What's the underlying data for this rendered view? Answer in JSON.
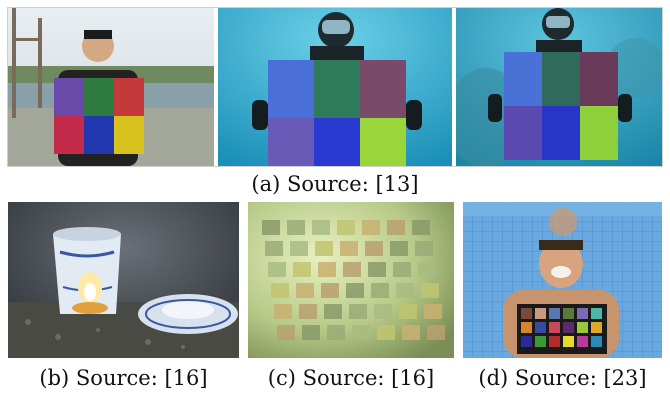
{
  "figure": {
    "row_a": {
      "caption": "(a) Source: [13]",
      "images": [
        {
          "description_icon": "person-holding-color-chart-on-shore-photo"
        },
        {
          "description_icon": "diver-holding-color-chart-underwater-photo"
        },
        {
          "description_icon": "diver-holding-color-chart-deeper-underwater-photo"
        }
      ]
    },
    "row_b": [
      {
        "caption": "(b) Source: [16]",
        "description_icon": "underwater-cup-and-saucer-photo"
      },
      {
        "caption": "(c) Source: [16]",
        "description_icon": "underwater-color-checker-greenish-photo"
      },
      {
        "caption": "(d) Source: [23]",
        "description_icon": "person-holding-color-checker-in-pool-photo"
      }
    ],
    "colors": {
      "chart_blue": "#3a56c8",
      "chart_green": "#2f7a3e",
      "chart_red": "#c43a3a",
      "chart_purple": "#6a4aa8",
      "chart_yellow": "#d8c21e",
      "water": "#2a9fc6",
      "pool_tile": "#5b9cd8"
    }
  }
}
